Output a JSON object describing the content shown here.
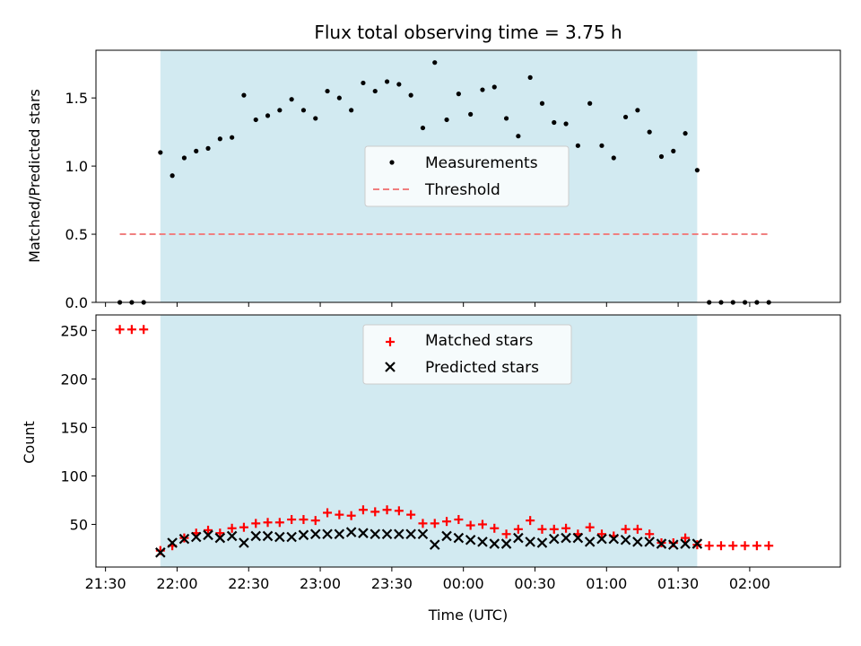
{
  "chart_data": [
    {
      "type": "scatter",
      "title": "Flux total observing time = 3.75 h",
      "xlabel": "",
      "ylabel": "Matched/Predicted stars",
      "ylim": [
        0,
        1.85
      ],
      "xlim": [
        "21:26",
        "02:38"
      ],
      "yticks": [
        0.0,
        0.5,
        1.0,
        1.5
      ],
      "ytick_labels": [
        "0.0",
        "0.5",
        "1.0",
        "1.5"
      ],
      "observing_window": [
        "21:53",
        "01:38"
      ],
      "grid": false,
      "legend": "center",
      "series": [
        {
          "name": "Measurements",
          "color": "#000000",
          "marker": "dot",
          "x": [
            "21:36",
            "21:41",
            "21:46",
            "21:53",
            "21:58",
            "22:03",
            "22:08",
            "22:13",
            "22:18",
            "22:23",
            "22:28",
            "22:33",
            "22:38",
            "22:43",
            "22:48",
            "22:53",
            "22:58",
            "23:03",
            "23:08",
            "23:13",
            "23:18",
            "23:23",
            "23:28",
            "23:33",
            "23:38",
            "23:43",
            "23:48",
            "23:53",
            "23:58",
            "00:03",
            "00:08",
            "00:13",
            "00:18",
            "00:23",
            "00:28",
            "00:33",
            "00:38",
            "00:43",
            "00:48",
            "00:53",
            "00:58",
            "01:03",
            "01:08",
            "01:13",
            "01:18",
            "01:23",
            "01:28",
            "01:33",
            "01:38",
            "01:43",
            "01:48",
            "01:53",
            "01:58",
            "02:03",
            "02:08"
          ],
          "y": [
            0,
            0,
            0,
            1.1,
            0.93,
            1.06,
            1.11,
            1.13,
            1.2,
            1.21,
            1.52,
            1.34,
            1.37,
            1.41,
            1.49,
            1.41,
            1.35,
            1.55,
            1.5,
            1.41,
            1.61,
            1.55,
            1.62,
            1.6,
            1.52,
            1.28,
            1.76,
            1.34,
            1.53,
            1.38,
            1.56,
            1.58,
            1.35,
            1.22,
            1.65,
            1.46,
            1.32,
            1.31,
            1.15,
            1.46,
            1.15,
            1.06,
            1.36,
            1.41,
            1.25,
            1.07,
            1.11,
            1.24,
            0.97,
            0,
            0,
            0,
            0,
            0,
            0
          ]
        },
        {
          "name": "Threshold",
          "color": "#f08080",
          "style": "dashed",
          "x": [
            "21:36",
            "02:08"
          ],
          "y": [
            0.5,
            0.5
          ]
        }
      ]
    },
    {
      "type": "scatter",
      "title": "",
      "xlabel": "Time (UTC)",
      "ylabel": "Count",
      "ylim": [
        6,
        266
      ],
      "xlim": [
        "21:26",
        "02:38"
      ],
      "yticks": [
        50,
        100,
        150,
        200,
        250
      ],
      "ytick_labels": [
        "50",
        "100",
        "150",
        "200",
        "250"
      ],
      "xticks": [
        "21:30",
        "22:00",
        "22:30",
        "23:00",
        "23:30",
        "00:00",
        "00:30",
        "01:00",
        "01:30",
        "02:00"
      ],
      "observing_window": [
        "21:53",
        "01:38"
      ],
      "grid": false,
      "legend": "top-center",
      "series": [
        {
          "name": "Matched stars",
          "color": "#ff0000",
          "marker": "plus",
          "x": [
            "21:36",
            "21:41",
            "21:46",
            "21:53",
            "21:58",
            "22:03",
            "22:08",
            "22:13",
            "22:18",
            "22:23",
            "22:28",
            "22:33",
            "22:38",
            "22:43",
            "22:48",
            "22:53",
            "22:58",
            "23:03",
            "23:08",
            "23:13",
            "23:18",
            "23:23",
            "23:28",
            "23:33",
            "23:38",
            "23:43",
            "23:48",
            "23:53",
            "23:58",
            "00:03",
            "00:08",
            "00:13",
            "00:18",
            "00:23",
            "00:28",
            "00:33",
            "00:38",
            "00:43",
            "00:48",
            "00:53",
            "00:58",
            "01:03",
            "01:08",
            "01:13",
            "01:18",
            "01:23",
            "01:28",
            "01:33",
            "01:38",
            "01:43",
            "01:48",
            "01:53",
            "01:58",
            "02:03",
            "02:08"
          ],
          "y": [
            251,
            251,
            251,
            23,
            28,
            36,
            41,
            44,
            41,
            46,
            47,
            51,
            52,
            52,
            55,
            55,
            54,
            62,
            60,
            59,
            65,
            63,
            65,
            64,
            60,
            51,
            51,
            53,
            55,
            49,
            50,
            46,
            40,
            45,
            54,
            45,
            45,
            46,
            40,
            47,
            40,
            38,
            45,
            45,
            40,
            31,
            31,
            36,
            29,
            28,
            28,
            28,
            28,
            28,
            28
          ]
        },
        {
          "name": "Predicted stars",
          "color": "#000000",
          "marker": "x",
          "x": [
            "21:53",
            "21:58",
            "22:03",
            "22:08",
            "22:13",
            "22:18",
            "22:23",
            "22:28",
            "22:33",
            "22:38",
            "22:43",
            "22:48",
            "22:53",
            "22:58",
            "23:03",
            "23:08",
            "23:13",
            "23:18",
            "23:23",
            "23:28",
            "23:33",
            "23:38",
            "23:43",
            "23:48",
            "23:53",
            "23:58",
            "00:03",
            "00:08",
            "00:13",
            "00:18",
            "00:23",
            "00:28",
            "00:33",
            "00:38",
            "00:43",
            "00:48",
            "00:53",
            "00:58",
            "01:03",
            "01:08",
            "01:13",
            "01:18",
            "01:23",
            "01:28",
            "01:33",
            "01:38"
          ],
          "y": [
            21,
            31,
            35,
            37,
            39,
            36,
            38,
            31,
            38,
            38,
            37,
            37,
            39,
            40,
            40,
            40,
            42,
            41,
            40,
            40,
            40,
            40,
            40,
            29,
            38,
            36,
            34,
            32,
            30,
            30,
            36,
            32,
            31,
            35,
            36,
            36,
            32,
            35,
            35,
            34,
            32,
            32,
            30,
            29,
            30,
            30
          ]
        }
      ]
    }
  ]
}
